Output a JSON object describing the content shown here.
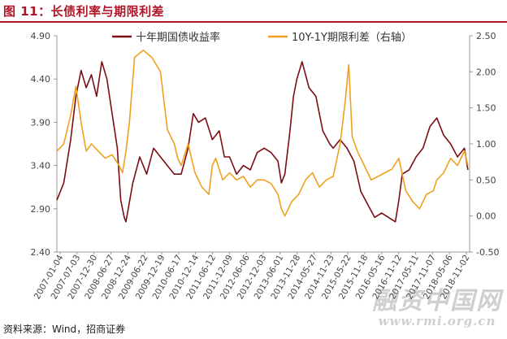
{
  "figure": {
    "title": "图 11：长债利率与期限利差",
    "source": "资料来源：Wind，招商证券"
  },
  "watermark": {
    "cn": "融资中国网",
    "url": "www.rmi.org.cn"
  },
  "colors": {
    "title": "#b0162a",
    "series_left": "#7b0d14",
    "series_right": "#f0a01e",
    "axis": "#9a9a9a",
    "text": "#444444"
  },
  "chart_data": {
    "type": "line",
    "legend_position": "top",
    "grid": false,
    "x_ticks": [
      "2007-01-04",
      "2007-07-03",
      "2007-12-30",
      "2008-06-27",
      "2008-12-24",
      "2009-06-22",
      "2009-12-19",
      "2010-06-17",
      "2010-12-14",
      "2011-06-12",
      "2011-12-09",
      "2012-06-06",
      "2012-12-03",
      "2013-06-01",
      "2013-11-28",
      "2014-05-27",
      "2014-11-23",
      "2015-05-22",
      "2015-11-18",
      "2016-05-16",
      "2016-11-12",
      "2017-05-11",
      "2017-11-07",
      "2018-05-06",
      "2018-11-02"
    ],
    "y_left": {
      "min": 2.4,
      "max": 4.9,
      "ticks": [
        "2.40",
        "2.90",
        "3.40",
        "3.90",
        "4.40",
        "4.90"
      ]
    },
    "y_right": {
      "min": -0.5,
      "max": 2.5,
      "ticks": [
        "-0.50",
        "0.00",
        "0.50",
        "1.00",
        "1.50",
        "2.00",
        "2.50"
      ]
    },
    "series": [
      {
        "name": "十年期国债收益率",
        "axis": "left",
        "x": [
          2007.0,
          2007.2,
          2007.4,
          2007.55,
          2007.7,
          2007.85,
          2008.0,
          2008.15,
          2008.3,
          2008.45,
          2008.6,
          2008.75,
          2008.85,
          2008.95,
          2009.0,
          2009.2,
          2009.4,
          2009.6,
          2009.8,
          2010.0,
          2010.2,
          2010.4,
          2010.6,
          2010.8,
          2010.95,
          2011.1,
          2011.3,
          2011.5,
          2011.7,
          2011.85,
          2012.0,
          2012.2,
          2012.4,
          2012.6,
          2012.8,
          2013.0,
          2013.2,
          2013.4,
          2013.5,
          2013.6,
          2013.75,
          2013.85,
          2013.95,
          2014.1,
          2014.3,
          2014.5,
          2014.7,
          2014.9,
          2015.0,
          2015.2,
          2015.4,
          2015.6,
          2015.8,
          2016.0,
          2016.2,
          2016.4,
          2016.6,
          2016.8,
          2016.9,
          2017.0,
          2017.2,
          2017.4,
          2017.6,
          2017.8,
          2017.9,
          2018.0,
          2018.2,
          2018.4,
          2018.6,
          2018.8,
          2018.9
        ],
        "values": [
          3.0,
          3.2,
          3.7,
          4.2,
          4.5,
          4.3,
          4.45,
          4.2,
          4.6,
          4.4,
          4.0,
          3.6,
          3.0,
          2.8,
          2.75,
          3.2,
          3.5,
          3.3,
          3.6,
          3.5,
          3.4,
          3.3,
          3.3,
          3.6,
          4.0,
          3.9,
          3.95,
          3.7,
          3.8,
          3.5,
          3.5,
          3.3,
          3.4,
          3.35,
          3.55,
          3.6,
          3.55,
          3.45,
          3.2,
          3.3,
          3.8,
          4.2,
          4.4,
          4.6,
          4.3,
          4.2,
          3.8,
          3.65,
          3.6,
          3.7,
          3.6,
          3.45,
          3.1,
          2.95,
          2.8,
          2.85,
          2.8,
          2.75,
          3.0,
          3.3,
          3.35,
          3.5,
          3.6,
          3.85,
          3.9,
          3.95,
          3.75,
          3.65,
          3.5,
          3.6,
          3.35
        ]
      },
      {
        "name": "10Y-1Y期限利差（右轴）",
        "axis": "right",
        "x": [
          2007.0,
          2007.2,
          2007.4,
          2007.55,
          2007.7,
          2007.85,
          2008.0,
          2008.2,
          2008.4,
          2008.6,
          2008.8,
          2008.9,
          2009.0,
          2009.1,
          2009.25,
          2009.5,
          2009.75,
          2010.0,
          2010.2,
          2010.4,
          2010.5,
          2010.6,
          2010.8,
          2011.0,
          2011.2,
          2011.4,
          2011.5,
          2011.6,
          2011.8,
          2012.0,
          2012.2,
          2012.4,
          2012.6,
          2012.8,
          2013.0,
          2013.2,
          2013.4,
          2013.5,
          2013.6,
          2013.8,
          2014.0,
          2014.2,
          2014.4,
          2014.6,
          2014.8,
          2015.0,
          2015.2,
          2015.35,
          2015.45,
          2015.55,
          2015.7,
          2015.9,
          2016.1,
          2016.3,
          2016.5,
          2016.7,
          2016.9,
          2017.1,
          2017.3,
          2017.5,
          2017.7,
          2017.9,
          2018.0,
          2018.2,
          2018.4,
          2018.6,
          2018.8,
          2018.9
        ],
        "values": [
          0.9,
          1.0,
          1.4,
          1.8,
          1.3,
          0.9,
          1.0,
          0.9,
          0.8,
          0.85,
          0.7,
          0.6,
          0.9,
          1.3,
          2.2,
          2.3,
          2.2,
          2.0,
          1.2,
          1.0,
          0.8,
          0.7,
          1.0,
          0.6,
          0.4,
          0.3,
          0.7,
          0.8,
          0.5,
          0.6,
          0.5,
          0.55,
          0.4,
          0.5,
          0.5,
          0.45,
          0.3,
          0.1,
          0.0,
          0.2,
          0.3,
          0.5,
          0.6,
          0.4,
          0.5,
          0.55,
          1.0,
          1.6,
          2.1,
          1.1,
          0.9,
          0.7,
          0.5,
          0.55,
          0.6,
          0.65,
          0.8,
          0.35,
          0.2,
          0.1,
          0.3,
          0.35,
          0.5,
          0.6,
          0.8,
          0.7,
          0.9,
          0.7
        ]
      }
    ]
  }
}
